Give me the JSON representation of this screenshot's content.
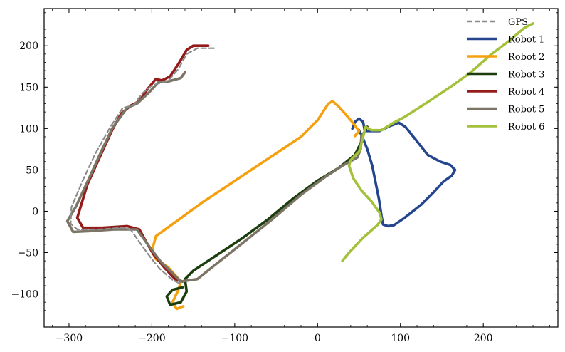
{
  "chart_data": {
    "type": "line",
    "title": "",
    "xlabel": "",
    "ylabel": "",
    "xlim": [
      -330,
      290
    ],
    "ylim": [
      -140,
      245
    ],
    "xticks": [
      -300,
      -200,
      -100,
      0,
      100,
      200
    ],
    "yticks": [
      -100,
      -50,
      0,
      50,
      100,
      150,
      200
    ],
    "xtick_labels": [
      "−300",
      "−200",
      "−100",
      "0",
      "100",
      "200"
    ],
    "ytick_labels": [
      "−100",
      "−50",
      "0",
      "50",
      "100",
      "150",
      "200"
    ],
    "grid": false,
    "legend_position": "top-right",
    "series": [
      {
        "name": "GPS",
        "color": "#8a8a8a",
        "dash": true,
        "points": [
          [
            -125,
            197
          ],
          [
            -145,
            197
          ],
          [
            -158,
            190
          ],
          [
            -168,
            172
          ],
          [
            -180,
            158
          ],
          [
            -200,
            152
          ],
          [
            -212,
            142
          ],
          [
            -222,
            128
          ],
          [
            -235,
            125
          ],
          [
            -250,
            102
          ],
          [
            -268,
            70
          ],
          [
            -283,
            38
          ],
          [
            -297,
            5
          ],
          [
            -298,
            -15
          ],
          [
            -290,
            -22
          ],
          [
            -265,
            -22
          ],
          [
            -235,
            -20
          ],
          [
            -225,
            -23
          ],
          [
            -213,
            -40
          ],
          [
            -200,
            -58
          ],
          [
            -190,
            -70
          ],
          [
            -175,
            -83
          ],
          [
            -165,
            -88
          ]
        ]
      },
      {
        "name": "Robot 1",
        "color": "#25468f",
        "dash": false,
        "points": [
          [
            42,
            100
          ],
          [
            45,
            108
          ],
          [
            50,
            112
          ],
          [
            55,
            108
          ],
          [
            57,
            97
          ],
          [
            65,
            97
          ],
          [
            75,
            97
          ],
          [
            87,
            103
          ],
          [
            98,
            107
          ],
          [
            106,
            102
          ],
          [
            118,
            87
          ],
          [
            133,
            68
          ],
          [
            148,
            60
          ],
          [
            160,
            56
          ],
          [
            166,
            50
          ],
          [
            162,
            43
          ],
          [
            152,
            36
          ],
          [
            140,
            23
          ],
          [
            125,
            8
          ],
          [
            105,
            -8
          ],
          [
            92,
            -17
          ],
          [
            85,
            -18
          ],
          [
            79,
            -16
          ],
          [
            77,
            -5
          ],
          [
            74,
            15
          ],
          [
            70,
            35
          ],
          [
            66,
            55
          ],
          [
            60,
            75
          ],
          [
            54,
            90
          ],
          [
            50,
            98
          ]
        ]
      },
      {
        "name": "Robot 2",
        "color": "#f5a00e",
        "dash": false,
        "points": [
          [
            -162,
            -115
          ],
          [
            -170,
            -118
          ],
          [
            -175,
            -110
          ],
          [
            -168,
            -95
          ],
          [
            -165,
            -85
          ],
          [
            -180,
            -68
          ],
          [
            -195,
            -58
          ],
          [
            -200,
            -48
          ],
          [
            -195,
            -30
          ],
          [
            -170,
            -12
          ],
          [
            -140,
            10
          ],
          [
            -110,
            30
          ],
          [
            -80,
            50
          ],
          [
            -50,
            70
          ],
          [
            -20,
            90
          ],
          [
            0,
            110
          ],
          [
            13,
            130
          ],
          [
            18,
            133
          ],
          [
            25,
            127
          ],
          [
            40,
            110
          ],
          [
            50,
            97
          ],
          [
            45,
            91
          ]
        ]
      },
      {
        "name": "Robot 3",
        "color": "#1c3d0e",
        "dash": false,
        "points": [
          [
            60,
            102
          ],
          [
            56,
            95
          ],
          [
            52,
            82
          ],
          [
            45,
            68
          ],
          [
            25,
            52
          ],
          [
            0,
            37
          ],
          [
            -30,
            15
          ],
          [
            -60,
            -10
          ],
          [
            -90,
            -32
          ],
          [
            -120,
            -52
          ],
          [
            -150,
            -72
          ],
          [
            -160,
            -82
          ],
          [
            -158,
            -97
          ],
          [
            -165,
            -110
          ],
          [
            -178,
            -113
          ],
          [
            -182,
            -103
          ],
          [
            -175,
            -95
          ],
          [
            -163,
            -92
          ]
        ]
      },
      {
        "name": "Robot 4",
        "color": "#951b1b",
        "dash": false,
        "points": [
          [
            -132,
            200
          ],
          [
            -150,
            200
          ],
          [
            -158,
            195
          ],
          [
            -168,
            178
          ],
          [
            -178,
            163
          ],
          [
            -188,
            158
          ],
          [
            -195,
            160
          ],
          [
            -205,
            148
          ],
          [
            -215,
            133
          ],
          [
            -225,
            128
          ],
          [
            -237,
            118
          ],
          [
            -248,
            98
          ],
          [
            -263,
            65
          ],
          [
            -278,
            32
          ],
          [
            -290,
            -8
          ],
          [
            -283,
            -20
          ],
          [
            -260,
            -20
          ],
          [
            -230,
            -18
          ],
          [
            -215,
            -22
          ],
          [
            -208,
            -35
          ],
          [
            -198,
            -52
          ],
          [
            -185,
            -68
          ],
          [
            -172,
            -82
          ],
          [
            -163,
            -85
          ]
        ]
      },
      {
        "name": "Robot 5",
        "color": "#7c7464",
        "dash": false,
        "points": [
          [
            -160,
            168
          ],
          [
            -165,
            161
          ],
          [
            -180,
            157
          ],
          [
            -192,
            156
          ],
          [
            -205,
            142
          ],
          [
            -218,
            130
          ],
          [
            -230,
            125
          ],
          [
            -248,
            100
          ],
          [
            -263,
            68
          ],
          [
            -278,
            35
          ],
          [
            -292,
            5
          ],
          [
            -302,
            -12
          ],
          [
            -295,
            -25
          ],
          [
            -275,
            -24
          ],
          [
            -245,
            -22
          ],
          [
            -218,
            -22
          ],
          [
            -205,
            -40
          ],
          [
            -190,
            -60
          ],
          [
            -175,
            -75
          ],
          [
            -165,
            -85
          ],
          [
            -145,
            -82
          ],
          [
            -120,
            -62
          ],
          [
            -90,
            -38
          ],
          [
            -55,
            -10
          ],
          [
            -20,
            20
          ],
          [
            10,
            42
          ],
          [
            30,
            55
          ],
          [
            48,
            65
          ],
          [
            52,
            75
          ],
          [
            53,
            92
          ]
        ]
      },
      {
        "name": "Robot 6",
        "color": "#a4c13c",
        "dash": false,
        "points": [
          [
            260,
            227
          ],
          [
            250,
            222
          ],
          [
            230,
            205
          ],
          [
            210,
            190
          ],
          [
            185,
            168
          ],
          [
            160,
            150
          ],
          [
            130,
            130
          ],
          [
            105,
            114
          ],
          [
            90,
            106
          ],
          [
            77,
            98
          ],
          [
            65,
            98
          ],
          [
            58,
            102
          ],
          [
            55,
            90
          ],
          [
            52,
            78
          ],
          [
            50,
            72
          ],
          [
            40,
            62
          ],
          [
            38,
            55
          ],
          [
            43,
            40
          ],
          [
            53,
            25
          ],
          [
            65,
            12
          ],
          [
            75,
            -2
          ],
          [
            77,
            -10
          ],
          [
            72,
            -17
          ],
          [
            55,
            -32
          ],
          [
            38,
            -50
          ],
          [
            30,
            -60
          ]
        ]
      }
    ]
  }
}
